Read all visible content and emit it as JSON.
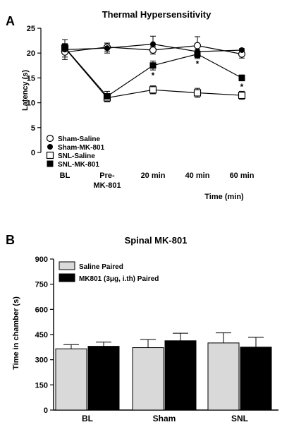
{
  "panels": {
    "a": "A",
    "b": "B"
  },
  "chart_data": [
    {
      "type": "line",
      "title": "Thermal Hypersensitivity",
      "xlabel": "Time (min)",
      "ylabel": "Latency (s)",
      "categories": [
        "BL",
        "Pre-MK-801",
        "20 min",
        "40 min",
        "60 min"
      ],
      "ylim": [
        0,
        25
      ],
      "yticks": [
        0,
        5,
        10,
        15,
        20,
        25
      ],
      "legend_position": "bottom-left",
      "grid": false,
      "series": [
        {
          "name": "Sham-Saline",
          "marker": "open-circle",
          "values": [
            20.2,
            21.2,
            20.6,
            21.5,
            19.8
          ],
          "errors": [
            1.0,
            0.8,
            0.8,
            1.8,
            0.8
          ]
        },
        {
          "name": "Sham-MK-801",
          "marker": "filled-circle",
          "values": [
            20.7,
            21.0,
            21.8,
            20.3,
            20.6
          ],
          "errors": [
            2.0,
            1.0,
            1.6,
            1.2,
            0.3
          ]
        },
        {
          "name": "SNL-Saline",
          "marker": "open-square",
          "values": [
            21.0,
            11.0,
            12.6,
            12.0,
            11.5
          ],
          "errors": [
            0.9,
            0.8,
            0.8,
            0.9,
            0.8
          ]
        },
        {
          "name": "SNL-MK-801",
          "marker": "filled-square",
          "values": [
            21.1,
            11.3,
            17.5,
            19.8,
            15.0
          ],
          "errors": [
            0.7,
            1.0,
            0.9,
            0.9,
            0.6
          ]
        }
      ],
      "annotations": [
        {
          "category": "20 min",
          "text": "*",
          "y": 15.5
        },
        {
          "category": "40 min",
          "text": "*",
          "y": 17.8
        },
        {
          "category": "60 min",
          "text": "*",
          "y": 13.2
        }
      ]
    },
    {
      "type": "bar",
      "title": "Spinal MK-801",
      "xlabel": "",
      "ylabel": "Time in chamber (s)",
      "categories": [
        "BL",
        "Sham",
        "SNL"
      ],
      "ylim": [
        0,
        900
      ],
      "yticks": [
        0,
        150,
        300,
        450,
        600,
        750,
        900
      ],
      "legend_position": "top-left",
      "grid": false,
      "series": [
        {
          "name": "Saline Paired",
          "color": "#d9d9d9",
          "values": [
            365,
            372,
            400
          ],
          "errors": [
            25,
            48,
            60
          ]
        },
        {
          "name": "MK801 (3μg, i.th) Paired",
          "color": "#000000",
          "values": [
            380,
            413,
            375
          ],
          "errors": [
            25,
            45,
            58
          ]
        }
      ]
    }
  ]
}
